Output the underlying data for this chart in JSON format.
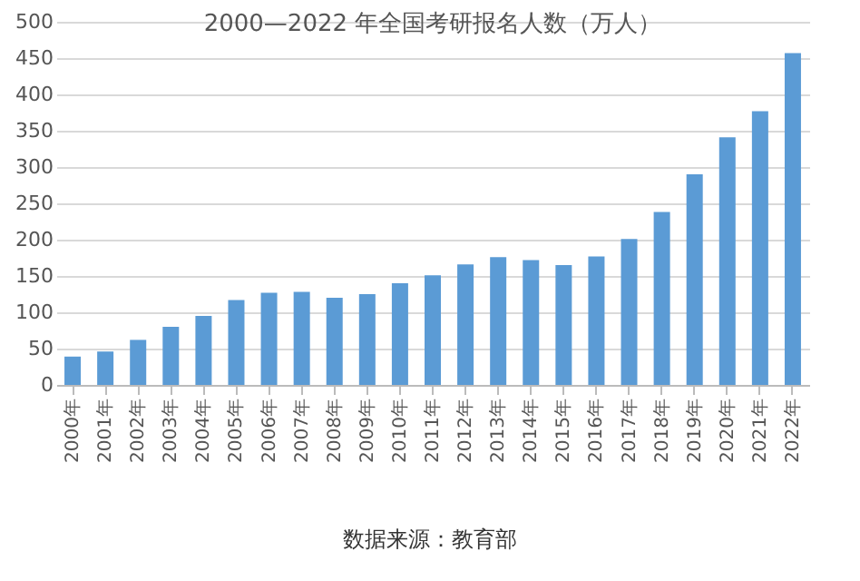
{
  "chart_data": {
    "type": "bar",
    "title": "2000—2022 年全国考研报名人数（万人）",
    "categories": [
      "2000年",
      "2001年",
      "2002年",
      "2003年",
      "2004年",
      "2005年",
      "2006年",
      "2007年",
      "2008年",
      "2009年",
      "2010年",
      "2011年",
      "2012年",
      "2013年",
      "2014年",
      "2015年",
      "2016年",
      "2017年",
      "2018年",
      "2019年",
      "2020年",
      "2021年",
      "2022年"
    ],
    "values": [
      39,
      46,
      62,
      80,
      95,
      117,
      127,
      128,
      120,
      125,
      140,
      151,
      166,
      176,
      172,
      165,
      177,
      201,
      238,
      290,
      341,
      377,
      457
    ],
    "color": "#5b9bd5",
    "ylim": [
      0,
      500
    ],
    "yticks": [
      0,
      50,
      100,
      150,
      200,
      250,
      300,
      350,
      400,
      450,
      500
    ],
    "grid": "y",
    "annotations": [
      "数据来源：教育部"
    ]
  }
}
